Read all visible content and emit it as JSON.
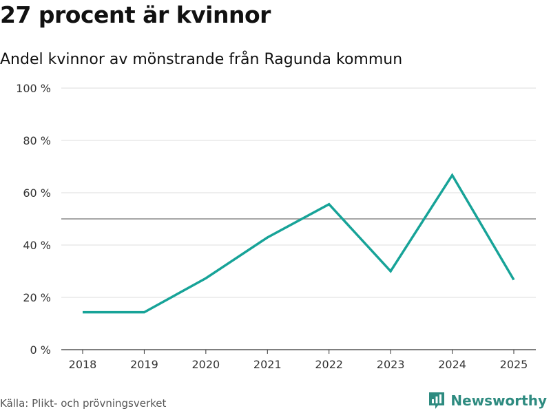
{
  "title": "27 procent är kvinnor",
  "subtitle": "Andel kvinnor av mönstrande från Ragunda kommun",
  "source": "Källa: Plikt- och prövningsverket",
  "brand": {
    "name": "Newsworthy",
    "icon": "newsworthy-logo-icon",
    "color": "#2e8b80"
  },
  "colors": {
    "line": "#17a398",
    "reference": "#888888",
    "grid": "#dddddd"
  },
  "chart_data": {
    "type": "line",
    "title": "27 procent är kvinnor",
    "subtitle": "Andel kvinnor av mönstrande från Ragunda kommun",
    "xlabel": "",
    "ylabel": "",
    "x": [
      "2018",
      "2019",
      "2020",
      "2021",
      "2022",
      "2023",
      "2024",
      "2025"
    ],
    "series": [
      {
        "name": "Andel kvinnor",
        "values": [
          14.3,
          14.3,
          27.3,
          42.9,
          55.6,
          30.0,
          66.7,
          26.7
        ]
      }
    ],
    "reference_line": 50,
    "ylim": [
      0,
      100
    ],
    "yticks": [
      0,
      20,
      40,
      60,
      80,
      100
    ],
    "ytick_labels": [
      "0 %",
      "20 %",
      "40 %",
      "60 %",
      "80 %",
      "100 %"
    ],
    "grid": true
  }
}
